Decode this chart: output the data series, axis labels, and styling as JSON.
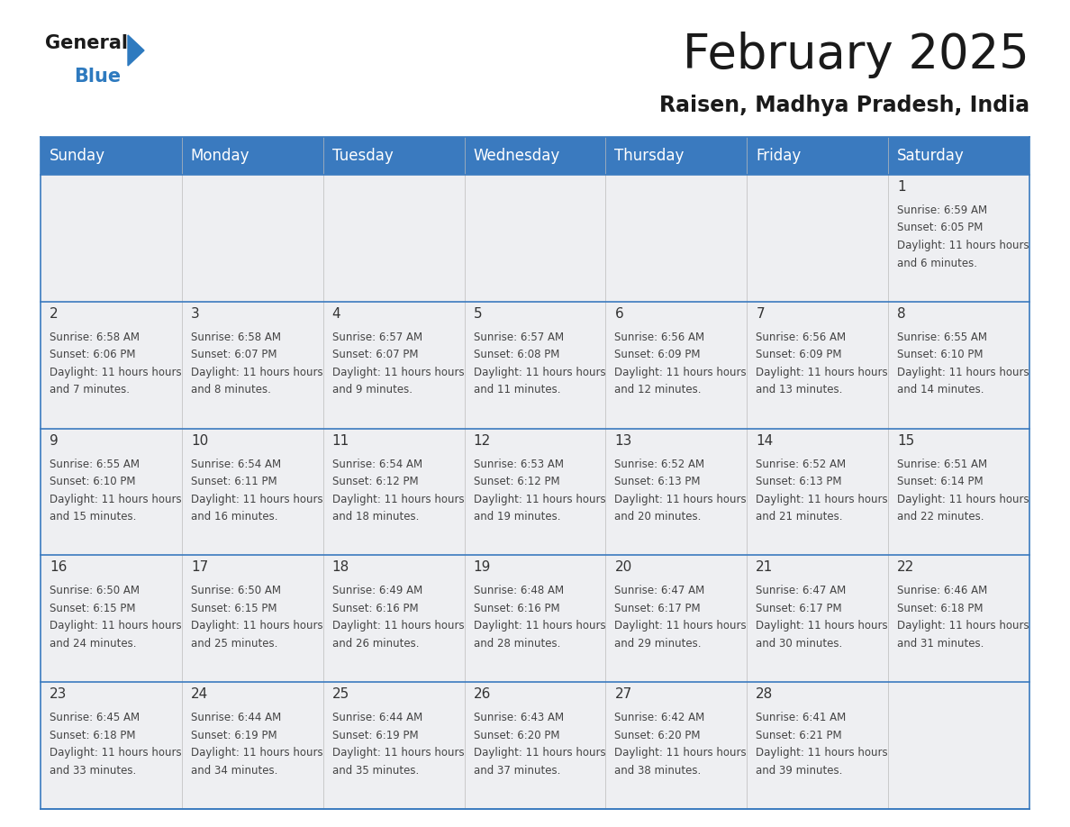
{
  "title": "February 2025",
  "subtitle": "Raisen, Madhya Pradesh, India",
  "header_color": "#3a7abf",
  "header_text_color": "#ffffff",
  "cell_bg_even": "#eeeff2",
  "cell_bg_odd": "#eeeff2",
  "border_color": "#3a7abf",
  "row_separator_color": "#3a7abf",
  "col_separator_color": "#aaaaaa",
  "day_headers": [
    "Sunday",
    "Monday",
    "Tuesday",
    "Wednesday",
    "Thursday",
    "Friday",
    "Saturday"
  ],
  "days": [
    {
      "day": 1,
      "col": 6,
      "row": 0,
      "sunrise": "6:59 AM",
      "sunset": "6:05 PM",
      "daylight": "11 hours and 6 minutes."
    },
    {
      "day": 2,
      "col": 0,
      "row": 1,
      "sunrise": "6:58 AM",
      "sunset": "6:06 PM",
      "daylight": "11 hours and 7 minutes."
    },
    {
      "day": 3,
      "col": 1,
      "row": 1,
      "sunrise": "6:58 AM",
      "sunset": "6:07 PM",
      "daylight": "11 hours and 8 minutes."
    },
    {
      "day": 4,
      "col": 2,
      "row": 1,
      "sunrise": "6:57 AM",
      "sunset": "6:07 PM",
      "daylight": "11 hours and 9 minutes."
    },
    {
      "day": 5,
      "col": 3,
      "row": 1,
      "sunrise": "6:57 AM",
      "sunset": "6:08 PM",
      "daylight": "11 hours and 11 minutes."
    },
    {
      "day": 6,
      "col": 4,
      "row": 1,
      "sunrise": "6:56 AM",
      "sunset": "6:09 PM",
      "daylight": "11 hours and 12 minutes."
    },
    {
      "day": 7,
      "col": 5,
      "row": 1,
      "sunrise": "6:56 AM",
      "sunset": "6:09 PM",
      "daylight": "11 hours and 13 minutes."
    },
    {
      "day": 8,
      "col": 6,
      "row": 1,
      "sunrise": "6:55 AM",
      "sunset": "6:10 PM",
      "daylight": "11 hours and 14 minutes."
    },
    {
      "day": 9,
      "col": 0,
      "row": 2,
      "sunrise": "6:55 AM",
      "sunset": "6:10 PM",
      "daylight": "11 hours and 15 minutes."
    },
    {
      "day": 10,
      "col": 1,
      "row": 2,
      "sunrise": "6:54 AM",
      "sunset": "6:11 PM",
      "daylight": "11 hours and 16 minutes."
    },
    {
      "day": 11,
      "col": 2,
      "row": 2,
      "sunrise": "6:54 AM",
      "sunset": "6:12 PM",
      "daylight": "11 hours and 18 minutes."
    },
    {
      "day": 12,
      "col": 3,
      "row": 2,
      "sunrise": "6:53 AM",
      "sunset": "6:12 PM",
      "daylight": "11 hours and 19 minutes."
    },
    {
      "day": 13,
      "col": 4,
      "row": 2,
      "sunrise": "6:52 AM",
      "sunset": "6:13 PM",
      "daylight": "11 hours and 20 minutes."
    },
    {
      "day": 14,
      "col": 5,
      "row": 2,
      "sunrise": "6:52 AM",
      "sunset": "6:13 PM",
      "daylight": "11 hours and 21 minutes."
    },
    {
      "day": 15,
      "col": 6,
      "row": 2,
      "sunrise": "6:51 AM",
      "sunset": "6:14 PM",
      "daylight": "11 hours and 22 minutes."
    },
    {
      "day": 16,
      "col": 0,
      "row": 3,
      "sunrise": "6:50 AM",
      "sunset": "6:15 PM",
      "daylight": "11 hours and 24 minutes."
    },
    {
      "day": 17,
      "col": 1,
      "row": 3,
      "sunrise": "6:50 AM",
      "sunset": "6:15 PM",
      "daylight": "11 hours and 25 minutes."
    },
    {
      "day": 18,
      "col": 2,
      "row": 3,
      "sunrise": "6:49 AM",
      "sunset": "6:16 PM",
      "daylight": "11 hours and 26 minutes."
    },
    {
      "day": 19,
      "col": 3,
      "row": 3,
      "sunrise": "6:48 AM",
      "sunset": "6:16 PM",
      "daylight": "11 hours and 28 minutes."
    },
    {
      "day": 20,
      "col": 4,
      "row": 3,
      "sunrise": "6:47 AM",
      "sunset": "6:17 PM",
      "daylight": "11 hours and 29 minutes."
    },
    {
      "day": 21,
      "col": 5,
      "row": 3,
      "sunrise": "6:47 AM",
      "sunset": "6:17 PM",
      "daylight": "11 hours and 30 minutes."
    },
    {
      "day": 22,
      "col": 6,
      "row": 3,
      "sunrise": "6:46 AM",
      "sunset": "6:18 PM",
      "daylight": "11 hours and 31 minutes."
    },
    {
      "day": 23,
      "col": 0,
      "row": 4,
      "sunrise": "6:45 AM",
      "sunset": "6:18 PM",
      "daylight": "11 hours and 33 minutes."
    },
    {
      "day": 24,
      "col": 1,
      "row": 4,
      "sunrise": "6:44 AM",
      "sunset": "6:19 PM",
      "daylight": "11 hours and 34 minutes."
    },
    {
      "day": 25,
      "col": 2,
      "row": 4,
      "sunrise": "6:44 AM",
      "sunset": "6:19 PM",
      "daylight": "11 hours and 35 minutes."
    },
    {
      "day": 26,
      "col": 3,
      "row": 4,
      "sunrise": "6:43 AM",
      "sunset": "6:20 PM",
      "daylight": "11 hours and 37 minutes."
    },
    {
      "day": 27,
      "col": 4,
      "row": 4,
      "sunrise": "6:42 AM",
      "sunset": "6:20 PM",
      "daylight": "11 hours and 38 minutes."
    },
    {
      "day": 28,
      "col": 5,
      "row": 4,
      "sunrise": "6:41 AM",
      "sunset": "6:21 PM",
      "daylight": "11 hours and 39 minutes."
    }
  ],
  "logo_text_general": "General",
  "logo_text_blue": "Blue",
  "logo_color_general": "#1a1a1a",
  "logo_color_blue": "#2e7abf",
  "logo_triangle_color": "#2e7abf",
  "title_fontsize": 38,
  "subtitle_fontsize": 17,
  "day_num_fontsize": 11,
  "cell_text_fontsize": 8.5,
  "header_fontsize": 12
}
